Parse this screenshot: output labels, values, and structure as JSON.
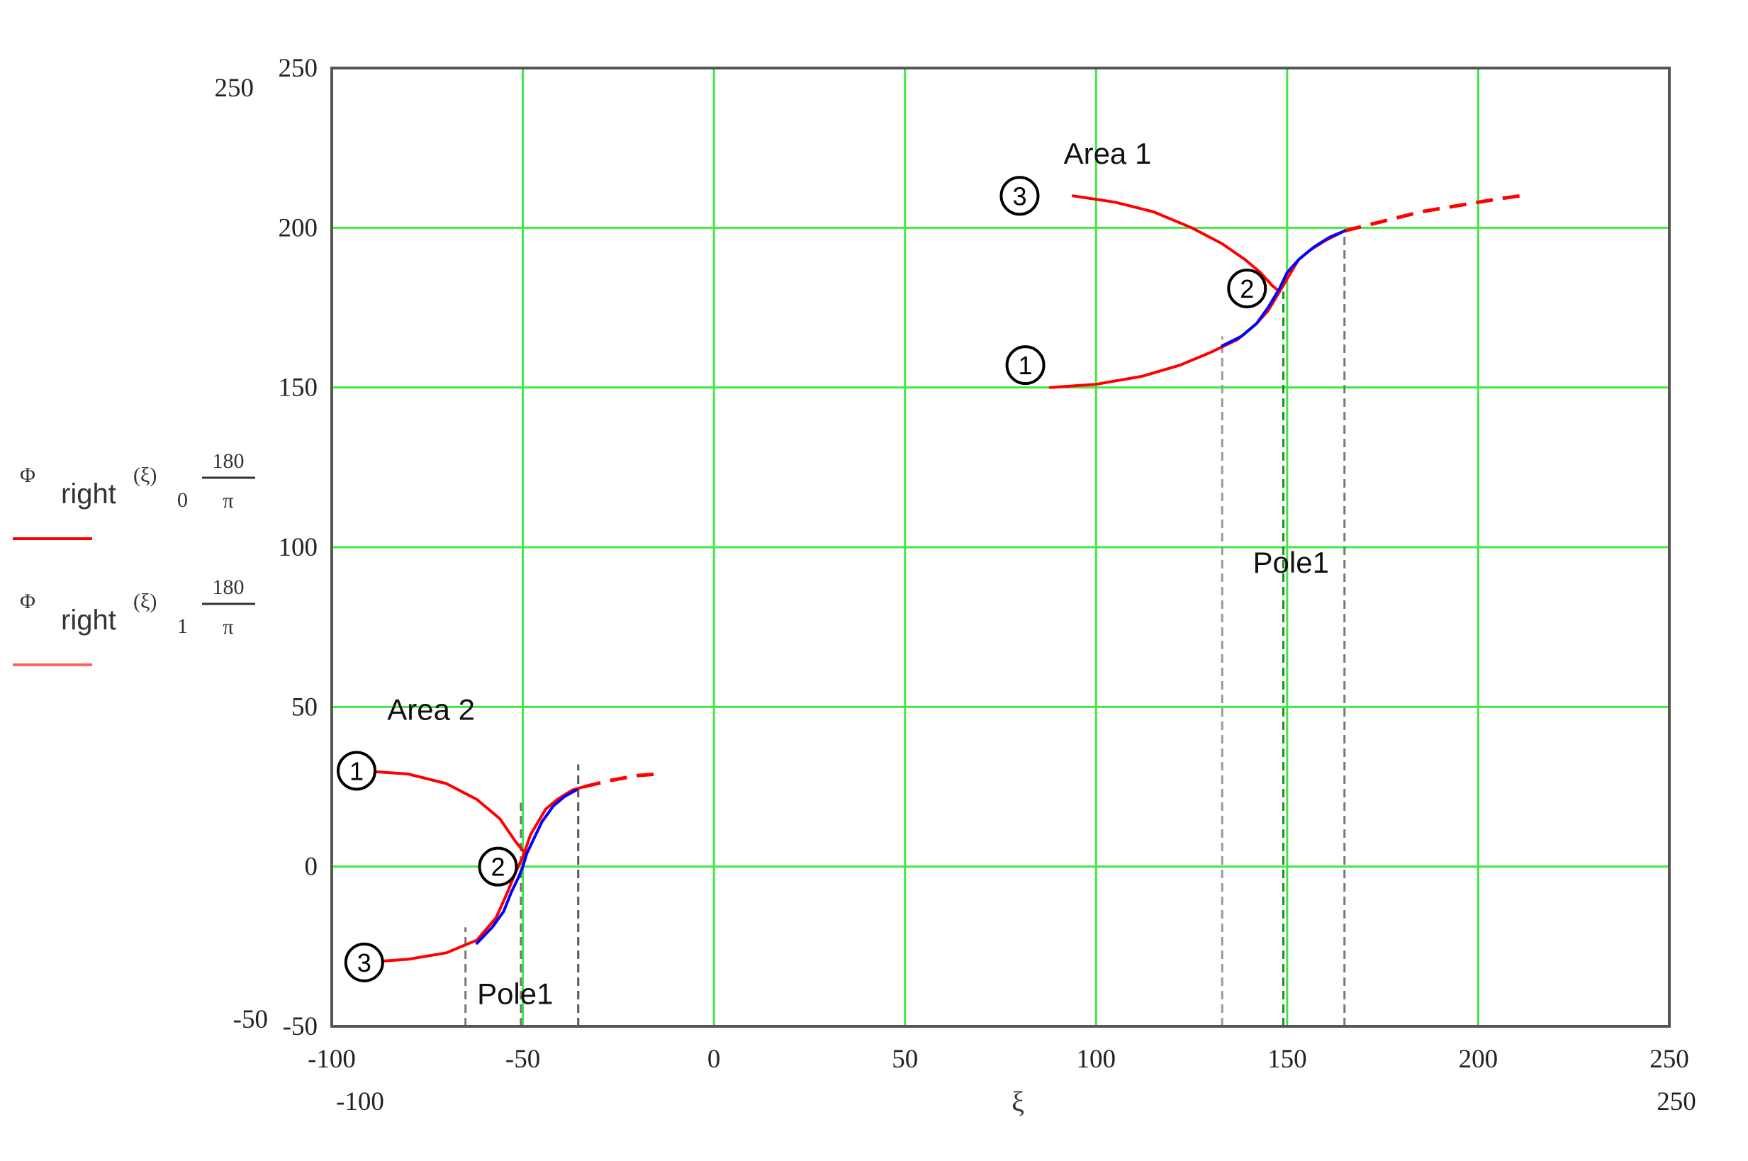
{
  "chart_data": {
    "type": "line",
    "title": "",
    "xlabel": "ξ",
    "ylabel": "",
    "xlim": [
      -100,
      250
    ],
    "ylim": [
      -50,
      250
    ],
    "xticks": [
      -100,
      -50,
      0,
      50,
      100,
      150,
      200,
      250
    ],
    "yticks": [
      -50,
      0,
      50,
      100,
      150,
      200,
      250
    ],
    "x_range_labels": {
      "min": "-100",
      "max": "250"
    },
    "y_range_labels": {
      "min": "-50",
      "max": "250"
    },
    "grid": true,
    "grid_color": "#44e644",
    "legend": {
      "placement": "left",
      "entries": [
        {
          "symbol": "Φ",
          "sub": "right",
          "arg": "(ξ)",
          "index": "0",
          "num": "180",
          "den": "π",
          "color": "#ff0000"
        },
        {
          "symbol": "Φ",
          "sub": "right",
          "arg": "(ξ)",
          "index": "1",
          "num": "180",
          "den": "π",
          "color": "#ff6060"
        }
      ]
    },
    "series": [
      {
        "color": "#ff0000",
        "style": "solid",
        "points": [
          [
            -92,
            30
          ],
          [
            -80,
            29
          ],
          [
            -70,
            26
          ],
          [
            -62,
            21
          ],
          [
            -56,
            15
          ],
          [
            -52,
            8
          ],
          [
            -50,
            5
          ]
        ]
      },
      {
        "color": "#ff0000",
        "style": "solid",
        "points": [
          [
            -92,
            -30
          ],
          [
            -80,
            -29
          ],
          [
            -70,
            -27
          ],
          [
            -62,
            -23
          ],
          [
            -57,
            -16
          ],
          [
            -54,
            -8
          ],
          [
            -52,
            -2
          ],
          [
            -50,
            3
          ],
          [
            -48,
            10
          ],
          [
            -46,
            14
          ],
          [
            -44,
            18
          ],
          [
            -41,
            21
          ],
          [
            -37,
            24
          ],
          [
            -34,
            25
          ]
        ]
      },
      {
        "color": "#ff0000",
        "style": "dashed",
        "points": [
          [
            -34,
            25
          ],
          [
            -27,
            27
          ],
          [
            -20,
            28.5
          ],
          [
            -15,
            29
          ]
        ]
      },
      {
        "color": "#0000ff",
        "style": "solid",
        "points": [
          [
            -62,
            -24
          ],
          [
            -58,
            -19
          ],
          [
            -55,
            -14
          ],
          [
            -53,
            -8
          ],
          [
            -51,
            -3
          ],
          [
            -50,
            0
          ],
          [
            -49,
            4
          ],
          [
            -47,
            9
          ],
          [
            -45,
            14
          ],
          [
            -42,
            19
          ],
          [
            -39,
            22
          ],
          [
            -36,
            24
          ]
        ]
      },
      {
        "color": "#ff0000",
        "style": "solid",
        "points": [
          [
            94,
            210
          ],
          [
            105,
            208
          ],
          [
            115,
            205
          ],
          [
            125,
            200
          ],
          [
            133,
            195
          ],
          [
            139,
            190
          ],
          [
            143,
            186
          ],
          [
            146,
            182
          ],
          [
            148,
            180
          ]
        ]
      },
      {
        "color": "#ff0000",
        "style": "solid",
        "points": [
          [
            88,
            150
          ],
          [
            100,
            151
          ],
          [
            112,
            153.5
          ],
          [
            122,
            157
          ],
          [
            130,
            161
          ],
          [
            137,
            165
          ],
          [
            142,
            170
          ],
          [
            145,
            174
          ],
          [
            147,
            178
          ],
          [
            149,
            182
          ],
          [
            151,
            186
          ],
          [
            153,
            190
          ],
          [
            156,
            193
          ],
          [
            160,
            196
          ],
          [
            165,
            199
          ]
        ]
      },
      {
        "color": "#ff0000",
        "style": "dashed",
        "points": [
          [
            165,
            199
          ],
          [
            175,
            202
          ],
          [
            185,
            205
          ],
          [
            195,
            207
          ],
          [
            205,
            209
          ],
          [
            211,
            210
          ]
        ]
      },
      {
        "color": "#0000ff",
        "style": "solid",
        "points": [
          [
            133,
            163
          ],
          [
            138,
            166
          ],
          [
            142,
            170
          ],
          [
            145,
            175
          ],
          [
            148,
            181
          ],
          [
            150,
            186
          ],
          [
            153,
            190
          ],
          [
            157,
            194
          ],
          [
            161,
            197
          ],
          [
            165,
            199
          ]
        ]
      }
    ],
    "vlines": [
      {
        "x": -65,
        "y": [
          -50,
          -19
        ],
        "color": "#777777"
      },
      {
        "x": -50.5,
        "y": [
          -50,
          20
        ],
        "color": "#777777"
      },
      {
        "x": -35.5,
        "y": [
          -50,
          32
        ],
        "color": "#555555"
      },
      {
        "x": 133,
        "y": [
          -50,
          166
        ],
        "color": "#999999"
      },
      {
        "x": 149,
        "y": [
          -50,
          180
        ],
        "color": "#228822"
      },
      {
        "x": 165,
        "y": [
          -50,
          199
        ],
        "color": "#777777"
      }
    ],
    "markers": [
      {
        "label": "1",
        "x": -93.5,
        "y": 30
      },
      {
        "label": "2",
        "x": -56.5,
        "y": 0
      },
      {
        "label": "3",
        "x": -91.5,
        "y": -30
      },
      {
        "label": "3",
        "x": 80,
        "y": 210
      },
      {
        "label": "2",
        "x": 139.5,
        "y": 181
      },
      {
        "label": "1",
        "x": 81.5,
        "y": 157
      }
    ],
    "annotations": [
      {
        "text": "Area 1",
        "x": 103,
        "y": 220
      },
      {
        "text": "Area 2",
        "x": -74,
        "y": 46
      },
      {
        "text": "Pole1",
        "x": 151,
        "y": 92
      },
      {
        "text": "Pole1",
        "x": -52,
        "y": -43
      }
    ]
  }
}
